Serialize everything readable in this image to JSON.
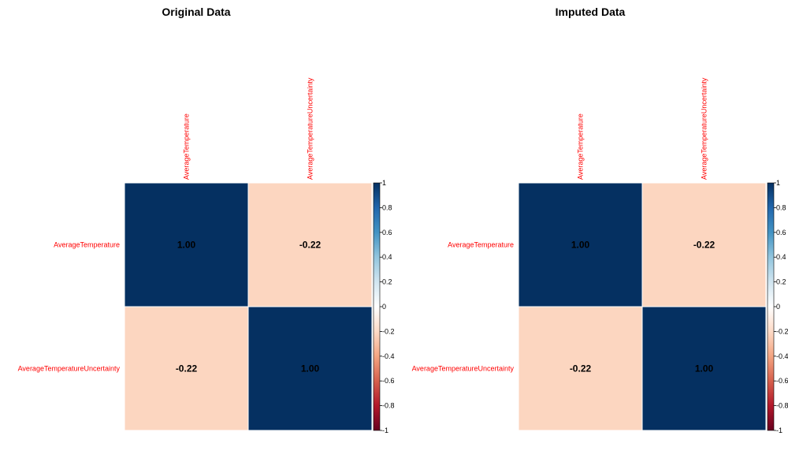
{
  "chart_data": [
    {
      "type": "heatmap",
      "title": "Original Data",
      "variables": [
        "AverageTemperature",
        "AverageTemperatureUncertainty"
      ],
      "matrix": [
        [
          1.0,
          -0.22
        ],
        [
          -0.22,
          1.0
        ]
      ],
      "cell_labels": [
        [
          "1.00",
          "-0.22"
        ],
        [
          "-0.22",
          "1.00"
        ]
      ],
      "colorbar": {
        "range": [
          -1,
          1
        ],
        "ticks": [
          1,
          0.8,
          0.6,
          0.4,
          0.2,
          0,
          -0.2,
          -0.4,
          -0.6,
          -0.8,
          -1
        ],
        "tick_labels": [
          "1",
          "0.8",
          "0.6",
          "0.4",
          "0.2",
          "0",
          "-0.2",
          "-0.4",
          "-0.6",
          "-0.8",
          "-1"
        ],
        "placement": "right"
      }
    },
    {
      "type": "heatmap",
      "title": "Imputed Data",
      "variables": [
        "AverageTemperature",
        "AverageTemperatureUncertainty"
      ],
      "matrix": [
        [
          1.0,
          -0.22
        ],
        [
          -0.22,
          1.0
        ]
      ],
      "cell_labels": [
        [
          "1.00",
          "-0.22"
        ],
        [
          "-0.22",
          "1.00"
        ]
      ],
      "colorbar": {
        "range": [
          -1,
          1
        ],
        "ticks": [
          1,
          0.8,
          0.6,
          0.4,
          0.2,
          0,
          -0.2,
          -0.4,
          -0.6,
          -0.8,
          -1
        ],
        "tick_labels": [
          "1",
          "0.8",
          "0.6",
          "0.4",
          "0.2",
          "0",
          "-0.2",
          "-0.4",
          "-0.6",
          "-0.8",
          "-1"
        ],
        "placement": "right"
      }
    }
  ],
  "colors": {
    "strong_positive": "#053061",
    "weak_negative": "#f9d2be",
    "label_text": "#ff0000"
  }
}
